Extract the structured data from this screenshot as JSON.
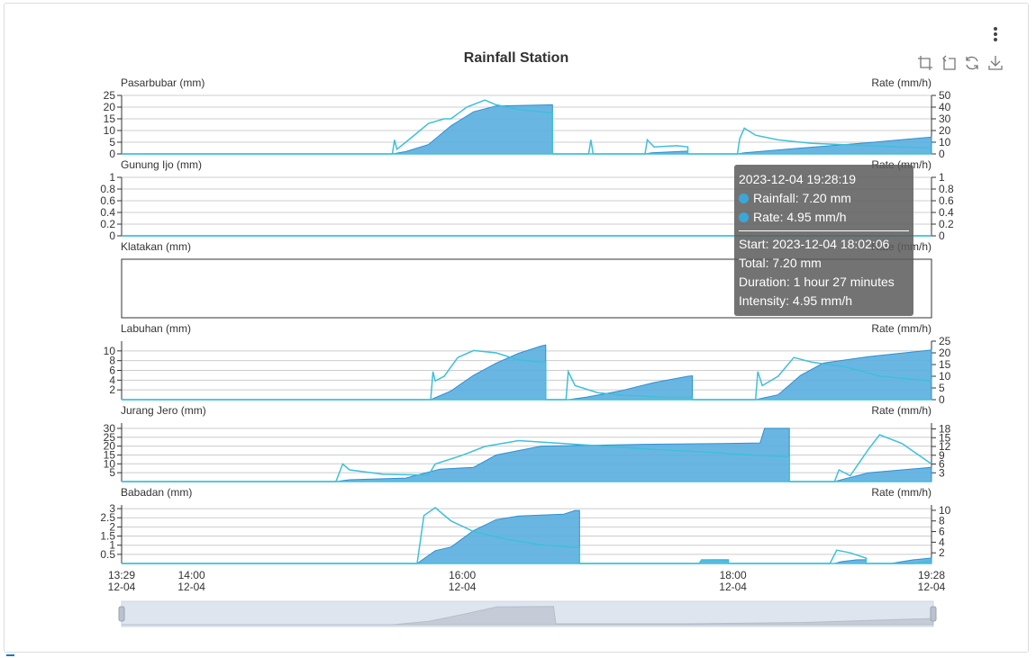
{
  "chart_title": "Rainfall Station",
  "colors": {
    "rainfall_fill": "#5aaee0",
    "rainfall_edge": "#2f8fcf",
    "rate_line": "#3ec0d9",
    "grid": "#cccccc",
    "axis": "#333333"
  },
  "toolbox": {
    "icons": [
      "zoom-select-icon",
      "zoom-reset-icon",
      "restore-icon",
      "download-icon"
    ]
  },
  "menu": {
    "icon": "more-vertical-icon"
  },
  "tooltip": {
    "time": "2023-12-04 19:28:19",
    "rainfall": "Rainfall: 7.20 mm",
    "rate": "Rate: 4.95 mm/h",
    "start": "Start: 2023-12-04 18:02:06",
    "total": "Total: 7.20 mm",
    "duration": "Duration: 1 hour 27 minutes",
    "intensity": "Intensity: 4.95 mm/h"
  },
  "chart_data": {
    "type": "area",
    "title": "Rainfall Station",
    "x_axis": {
      "start": "12-04 13:29",
      "end": "12-04 19:28",
      "ticks": [
        {
          "time": "13:29",
          "date": "12-04"
        },
        {
          "time": "14:00",
          "date": "12-04"
        },
        {
          "time": "16:00",
          "date": "12-04"
        },
        {
          "time": "18:00",
          "date": "12-04"
        },
        {
          "time": "19:28",
          "date": "12-04"
        }
      ]
    },
    "panels": [
      {
        "name": "Pasarbubar",
        "left_label": "Pasarbubar (mm)",
        "right_label": "Rate (mm/h)",
        "left_ticks": [
          "25",
          "20",
          "15",
          "10",
          "5",
          "0"
        ],
        "left_max": 25,
        "right_ticks": [
          "50",
          "40",
          "30",
          "20",
          "10",
          "0"
        ],
        "right_max": 50,
        "rainfall": [
          [
            "13:29",
            0
          ],
          [
            "15:29",
            0
          ],
          [
            "15:35",
            1
          ],
          [
            "15:45",
            4
          ],
          [
            "15:55",
            12
          ],
          [
            "16:05",
            18
          ],
          [
            "16:15",
            20.5
          ],
          [
            "16:40",
            21
          ],
          [
            "16:40",
            0
          ],
          [
            "17:21",
            0
          ],
          [
            "17:24",
            0.5
          ],
          [
            "17:40",
            1.2
          ],
          [
            "17:40",
            0
          ],
          [
            "18:02",
            0
          ],
          [
            "18:05",
            0.5
          ],
          [
            "18:30",
            2.5
          ],
          [
            "19:00",
            4.8
          ],
          [
            "19:28",
            7.2
          ]
        ],
        "rate": [
          [
            "13:29",
            0
          ],
          [
            "15:29",
            0
          ],
          [
            "15:30",
            12
          ],
          [
            "15:31",
            4
          ],
          [
            "15:35",
            10
          ],
          [
            "15:45",
            26
          ],
          [
            "15:52",
            30
          ],
          [
            "15:55",
            30
          ],
          [
            "16:02",
            40
          ],
          [
            "16:10",
            46
          ],
          [
            "16:15",
            42
          ],
          [
            "16:25",
            38
          ],
          [
            "16:40",
            35
          ],
          [
            "16:40",
            0
          ],
          [
            "16:56",
            0
          ],
          [
            "16:57",
            12
          ],
          [
            "16:58",
            0
          ],
          [
            "17:21",
            0
          ],
          [
            "17:22",
            12
          ],
          [
            "17:25",
            6
          ],
          [
            "17:35",
            7
          ],
          [
            "17:40",
            6
          ],
          [
            "17:40",
            0
          ],
          [
            "18:02",
            0
          ],
          [
            "18:03",
            13
          ],
          [
            "18:05",
            22
          ],
          [
            "18:10",
            16
          ],
          [
            "18:20",
            12
          ],
          [
            "18:35",
            9
          ],
          [
            "19:00",
            7
          ],
          [
            "19:28",
            5
          ]
        ]
      },
      {
        "name": "Gunung Ijo",
        "left_label": "Gunung Ijo (mm)",
        "right_label": "Rate (mm/h)",
        "left_ticks": [
          "1",
          "0.8",
          "0.6",
          "0.4",
          "0.2",
          "0"
        ],
        "left_max": 1,
        "right_ticks": [
          "1",
          "0.8",
          "0.6",
          "0.4",
          "0.2",
          "0"
        ],
        "right_max": 1,
        "rainfall": [
          [
            "13:29",
            0
          ],
          [
            "19:28",
            0
          ]
        ],
        "rate": [
          [
            "13:29",
            0
          ],
          [
            "19:28",
            0
          ]
        ]
      },
      {
        "name": "Klatakan",
        "left_label": "Klatakan (mm)",
        "right_label": "Rate (mm/h)",
        "left_ticks": [],
        "left_max": 1,
        "right_ticks": [],
        "right_max": 1,
        "rainfall": [],
        "rate": []
      },
      {
        "name": "Labuhan",
        "left_label": "Labuhan (mm)",
        "right_label": "Rate (mm/h)",
        "left_ticks": [
          "10",
          "8",
          "6",
          "4",
          "2"
        ],
        "left_max": 12,
        "right_ticks": [
          "25",
          "20",
          "15",
          "10",
          "5",
          "0"
        ],
        "right_max": 25,
        "rainfall": [
          [
            "13:29",
            0
          ],
          [
            "15:46",
            0
          ],
          [
            "15:55",
            1.8
          ],
          [
            "16:05",
            5
          ],
          [
            "16:15",
            7.5
          ],
          [
            "16:25",
            9.5
          ],
          [
            "16:35",
            11
          ],
          [
            "16:37",
            11.2
          ],
          [
            "16:37",
            0
          ],
          [
            "16:47",
            0
          ],
          [
            "16:55",
            0.5
          ],
          [
            "17:10",
            1.8
          ],
          [
            "17:25",
            3.5
          ],
          [
            "17:40",
            4.8
          ],
          [
            "17:42",
            4.9
          ],
          [
            "17:42",
            0
          ],
          [
            "18:10",
            0
          ],
          [
            "18:20",
            1
          ],
          [
            "18:30",
            5
          ],
          [
            "18:40",
            7.5
          ],
          [
            "19:00",
            8.8
          ],
          [
            "19:28",
            10.2
          ]
        ],
        "rate": [
          [
            "13:29",
            0
          ],
          [
            "15:46",
            0
          ],
          [
            "15:47",
            12
          ],
          [
            "15:48",
            8
          ],
          [
            "15:52",
            10
          ],
          [
            "15:58",
            18
          ],
          [
            "16:05",
            21
          ],
          [
            "16:15",
            20
          ],
          [
            "16:25",
            17
          ],
          [
            "16:35",
            16
          ],
          [
            "16:37",
            16
          ],
          [
            "16:37",
            0
          ],
          [
            "16:46",
            0
          ],
          [
            "16:47",
            12
          ],
          [
            "16:50",
            6
          ],
          [
            "17:00",
            3
          ],
          [
            "17:10",
            2
          ],
          [
            "17:30",
            1
          ],
          [
            "17:42",
            1
          ],
          [
            "17:42",
            0
          ],
          [
            "18:10",
            0
          ],
          [
            "18:11",
            12
          ],
          [
            "18:13",
            6
          ],
          [
            "18:20",
            10
          ],
          [
            "18:27",
            18
          ],
          [
            "18:35",
            16
          ],
          [
            "18:50",
            14
          ],
          [
            "19:05",
            10
          ],
          [
            "19:28",
            8
          ]
        ]
      },
      {
        "name": "Jurang Jero",
        "left_label": "Jurang Jero (mm)",
        "right_label": "Rate (mm/h)",
        "left_ticks": [
          "30",
          "25",
          "20",
          "15",
          "10",
          "5"
        ],
        "left_max": 33,
        "right_ticks": [
          "18",
          "15",
          "12",
          "9",
          "6",
          "3"
        ],
        "right_max": 20,
        "rainfall": [
          [
            "13:29",
            0
          ],
          [
            "15:04",
            0
          ],
          [
            "15:10",
            1
          ],
          [
            "15:35",
            2
          ],
          [
            "15:50",
            7
          ],
          [
            "16:05",
            8
          ],
          [
            "16:15",
            15
          ],
          [
            "16:35",
            20
          ],
          [
            "17:00",
            20.5
          ],
          [
            "17:20",
            21
          ],
          [
            "17:55",
            21.5
          ],
          [
            "18:12",
            21.8
          ],
          [
            "18:14",
            30
          ],
          [
            "18:25",
            30
          ],
          [
            "18:25",
            0
          ],
          [
            "18:45",
            0
          ],
          [
            "19:00",
            5
          ],
          [
            "19:28",
            8
          ]
        ],
        "rate": [
          [
            "13:29",
            0
          ],
          [
            "15:04",
            0
          ],
          [
            "15:07",
            6
          ],
          [
            "15:10",
            4
          ],
          [
            "15:25",
            2.5
          ],
          [
            "15:45",
            2.2
          ],
          [
            "15:48",
            6
          ],
          [
            "16:00",
            9
          ],
          [
            "16:10",
            12
          ],
          [
            "16:25",
            14
          ],
          [
            "16:45",
            13
          ],
          [
            "17:05",
            12
          ],
          [
            "17:25",
            11
          ],
          [
            "17:50",
            10
          ],
          [
            "18:10",
            9
          ],
          [
            "18:25",
            8.5
          ],
          [
            "18:25",
            0
          ],
          [
            "18:45",
            0
          ],
          [
            "18:47",
            4
          ],
          [
            "18:52",
            2
          ],
          [
            "19:00",
            11
          ],
          [
            "19:05",
            16
          ],
          [
            "19:15",
            13
          ],
          [
            "19:28",
            6
          ]
        ]
      },
      {
        "name": "Babadan",
        "left_label": "Babadan (mm)",
        "right_label": "Rate (mm/h)",
        "left_ticks": [
          "3",
          "2.5",
          "2",
          "1.5",
          "1",
          "0.5"
        ],
        "left_max": 3.2,
        "right_ticks": [
          "10",
          "8",
          "6",
          "4",
          "2"
        ],
        "right_max": 11,
        "rainfall": [
          [
            "13:29",
            0
          ],
          [
            "15:40",
            0
          ],
          [
            "15:48",
            0.7
          ],
          [
            "15:55",
            0.9
          ],
          [
            "16:05",
            1.8
          ],
          [
            "16:15",
            2.4
          ],
          [
            "16:25",
            2.6
          ],
          [
            "16:45",
            2.7
          ],
          [
            "16:50",
            2.9
          ],
          [
            "16:52",
            2.9
          ],
          [
            "16:52",
            0
          ],
          [
            "17:45",
            0
          ],
          [
            "17:46",
            0.2
          ],
          [
            "17:55",
            0.2
          ],
          [
            "17:58",
            0.2
          ],
          [
            "17:58",
            0
          ],
          [
            "18:45",
            0
          ],
          [
            "18:48",
            0.1
          ],
          [
            "18:55",
            0.2
          ],
          [
            "18:59",
            0.2
          ],
          [
            "18:59",
            0
          ],
          [
            "19:10",
            0
          ],
          [
            "19:20",
            0.2
          ],
          [
            "19:28",
            0.3
          ]
        ],
        "rate": [
          [
            "13:29",
            0
          ],
          [
            "15:40",
            0
          ],
          [
            "15:43",
            9
          ],
          [
            "15:48",
            10.5
          ],
          [
            "15:55",
            8
          ],
          [
            "16:05",
            6
          ],
          [
            "16:20",
            4.5
          ],
          [
            "16:35",
            3.5
          ],
          [
            "16:50",
            3
          ],
          [
            "16:52",
            3
          ],
          [
            "16:52",
            0
          ],
          [
            "17:45",
            0
          ],
          [
            "17:46",
            0.6
          ],
          [
            "17:58",
            0.5
          ],
          [
            "17:58",
            0
          ],
          [
            "18:43",
            0
          ],
          [
            "18:46",
            2.5
          ],
          [
            "18:52",
            2
          ],
          [
            "18:59",
            1
          ],
          [
            "18:59",
            0
          ],
          [
            "19:20",
            0
          ],
          [
            "19:28",
            0.5
          ]
        ]
      }
    ]
  }
}
